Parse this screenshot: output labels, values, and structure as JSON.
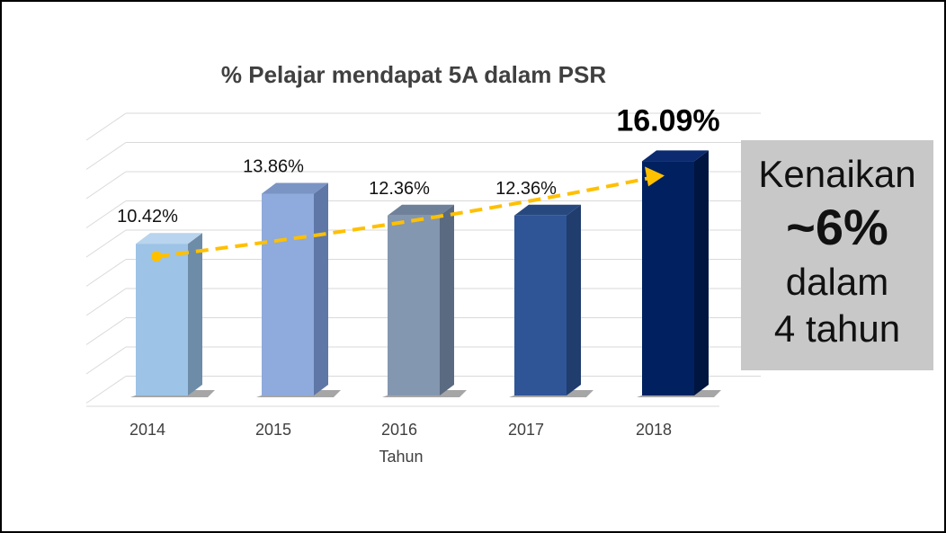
{
  "chart_data": {
    "type": "bar",
    "title": "% Pelajar mendapat 5A dalam PSR",
    "xlabel": "Tahun",
    "ylabel": "",
    "categories": [
      "2014",
      "2015",
      "2016",
      "2017",
      "2018"
    ],
    "values": [
      10.42,
      13.86,
      12.36,
      12.36,
      16.09
    ],
    "data_labels": [
      "10.42%",
      "13.86%",
      "12.36%",
      "12.36%",
      "16.09%"
    ],
    "bar_colors": [
      "#9dc3e6",
      "#8faadc",
      "#8497b0",
      "#2f5597",
      "#002060"
    ],
    "side_colors": [
      "#6d8ca8",
      "#5f77a6",
      "#5a6a80",
      "#203d6e",
      "#001540"
    ],
    "top_colors": [
      "#b8d4ee",
      "#7a94c4",
      "#6f8199",
      "#27487f",
      "#0b2a70"
    ],
    "trend_color": "#ffc000",
    "grid": true,
    "legend": "none"
  },
  "callout": {
    "line1": "Kenaikan",
    "line2": "~6%",
    "line3": "dalam",
    "line4": "4 tahun"
  }
}
